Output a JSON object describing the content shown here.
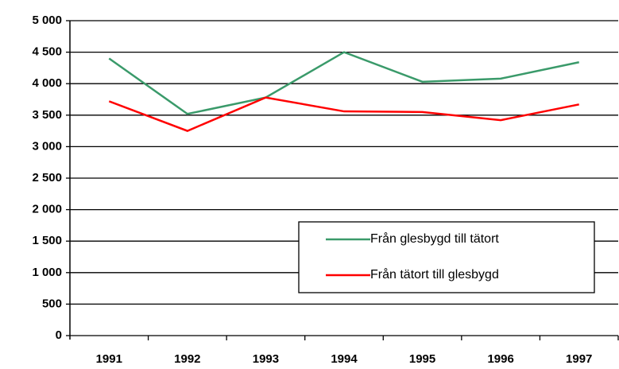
{
  "chart_data": {
    "type": "line",
    "categories": [
      "1991",
      "1992",
      "1993",
      "1994",
      "1995",
      "1996",
      "1997"
    ],
    "series": [
      {
        "name": "Från glesbygd till tätort",
        "color": "#3a9a6a",
        "values": [
          4400,
          3520,
          3780,
          4500,
          4030,
          4080,
          4340
        ]
      },
      {
        "name": "Från tätort till glesbygd",
        "color": "#ff0000",
        "values": [
          3720,
          3250,
          3780,
          3560,
          3550,
          3420,
          3670
        ]
      }
    ],
    "ylim": [
      0,
      5000
    ],
    "yticks": [
      0,
      500,
      {
        "value": 1000,
        "label": "1 000"
      },
      {
        "value": 1500,
        "label": "1 500"
      },
      {
        "value": 2000,
        "label": "2 000"
      },
      {
        "value": 2500,
        "label": "2 500"
      },
      {
        "value": 3000,
        "label": "3 000"
      },
      {
        "value": 3500,
        "label": "3 500"
      },
      {
        "value": 4000,
        "label": "4 000"
      },
      {
        "value": 4500,
        "label": "4 500"
      },
      {
        "value": 5000,
        "label": "5 000"
      }
    ],
    "grid": true
  }
}
